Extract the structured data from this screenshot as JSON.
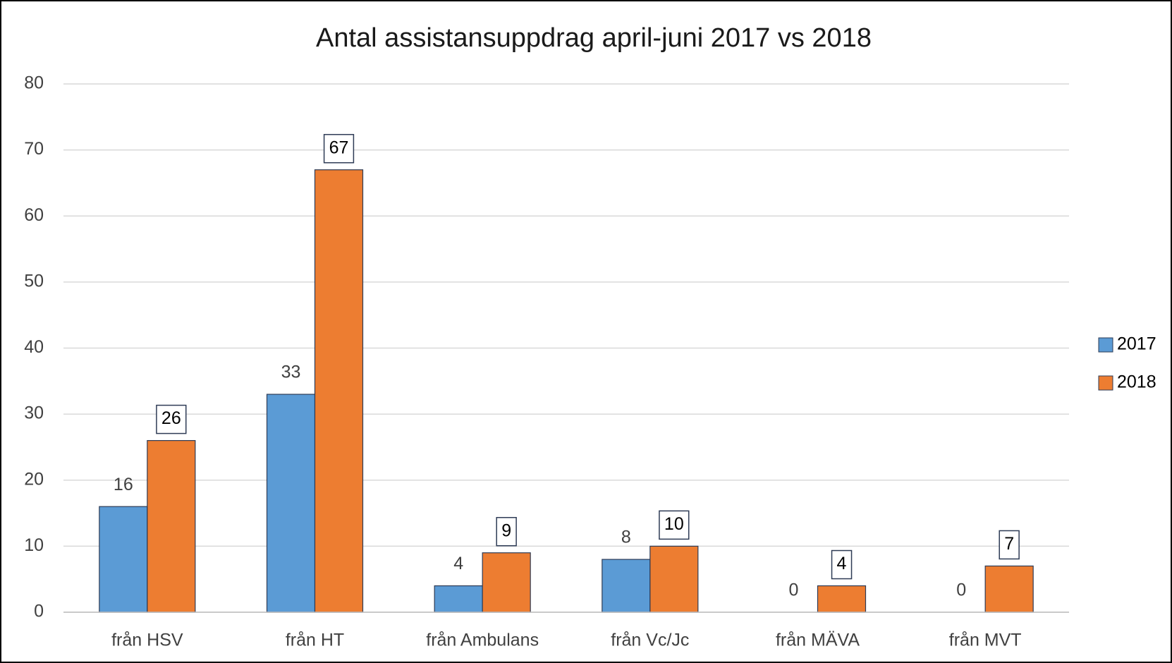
{
  "chart_data": {
    "type": "bar",
    "title": "Antal assistansuppdrag april-juni 2017 vs 2018",
    "categories": [
      "från HSV",
      "från HT",
      "från Ambulans",
      "från Vc/Jc",
      "från MÄVA",
      "från MVT"
    ],
    "series": [
      {
        "name": "2017",
        "color": "#5b9bd5",
        "values": [
          16,
          33,
          4,
          8,
          0,
          0
        ]
      },
      {
        "name": "2018",
        "color": "#ed7d31",
        "values": [
          26,
          67,
          9,
          10,
          4,
          7
        ]
      }
    ],
    "ylim": [
      0,
      80
    ],
    "yticks": [
      0,
      10,
      20,
      30,
      40,
      50,
      60,
      70,
      80
    ],
    "grid": true,
    "legend": "right"
  }
}
